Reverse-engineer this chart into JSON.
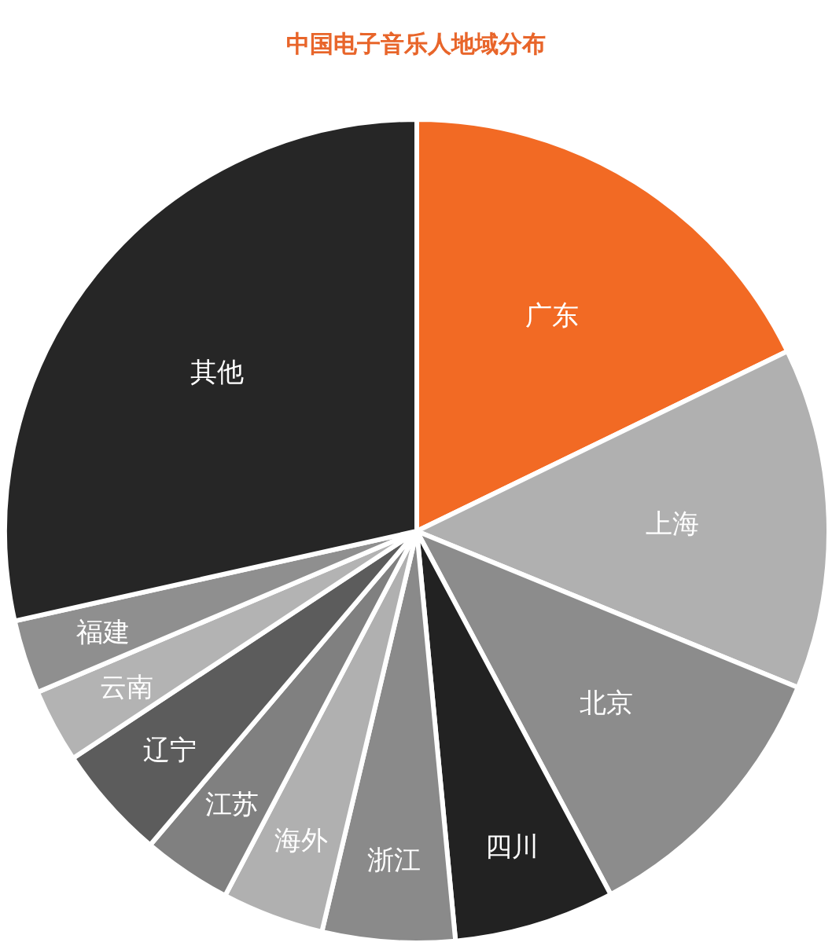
{
  "chart_data": {
    "type": "pie",
    "title": "中国电子音乐人地域分布",
    "categories": [
      "广东",
      "上海",
      "北京",
      "四川",
      "浙江",
      "海外",
      "江苏",
      "辽宁",
      "云南",
      "福建",
      "其他"
    ],
    "values": [
      17.8,
      13.4,
      11.0,
      6.3,
      5.2,
      4.0,
      3.5,
      4.5,
      2.9,
      2.9,
      28.5
    ],
    "colors": [
      "#f26a24",
      "#b0b0b0",
      "#8c8c8c",
      "#222222",
      "#8a8a8a",
      "#b0b0b0",
      "#808080",
      "#5c5c5c",
      "#b3b3b3",
      "#8f8f8f",
      "#262626"
    ]
  }
}
